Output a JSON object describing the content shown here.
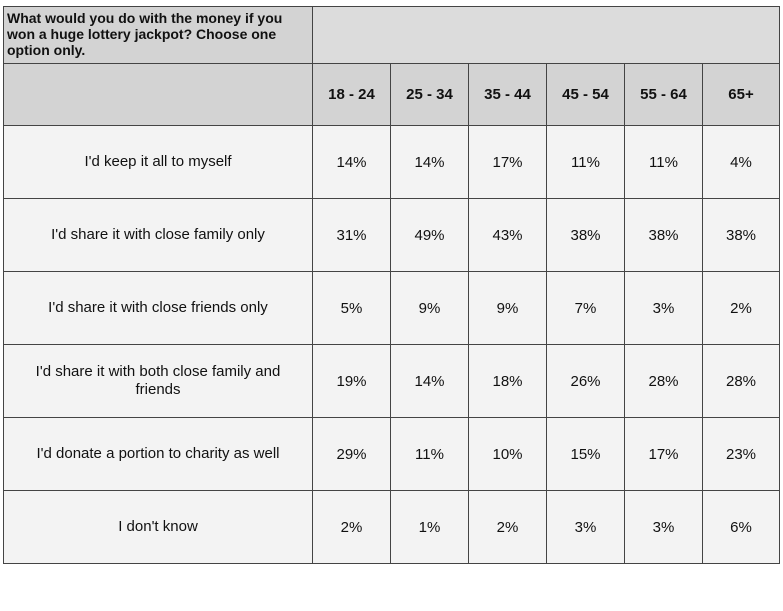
{
  "chart_data": {
    "type": "table",
    "title": "What would you do with the money if you won a huge lottery jackpot? Choose one option only.",
    "columns": [
      "18 - 24",
      "25 - 34",
      "35 - 44",
      "45 - 54",
      "55 - 64",
      "65+"
    ],
    "rows": [
      {
        "label": "I'd keep it all to myself",
        "values": [
          "14%",
          "14%",
          "17%",
          "11%",
          "11%",
          "4%"
        ]
      },
      {
        "label": "I'd share it with close family only",
        "values": [
          "31%",
          "49%",
          "43%",
          "38%",
          "38%",
          "38%"
        ]
      },
      {
        "label": "I'd share it with close friends only",
        "values": [
          "5%",
          "9%",
          "9%",
          "7%",
          "3%",
          "2%"
        ]
      },
      {
        "label": "I'd share it with both close family and friends",
        "values": [
          "19%",
          "14%",
          "18%",
          "26%",
          "28%",
          "28%"
        ]
      },
      {
        "label": "I'd donate a portion to charity as well",
        "values": [
          "29%",
          "11%",
          "10%",
          "15%",
          "17%",
          "23%"
        ]
      },
      {
        "label": "I don't know",
        "values": [
          "2%",
          "1%",
          "2%",
          "3%",
          "3%",
          "6%"
        ]
      }
    ]
  }
}
